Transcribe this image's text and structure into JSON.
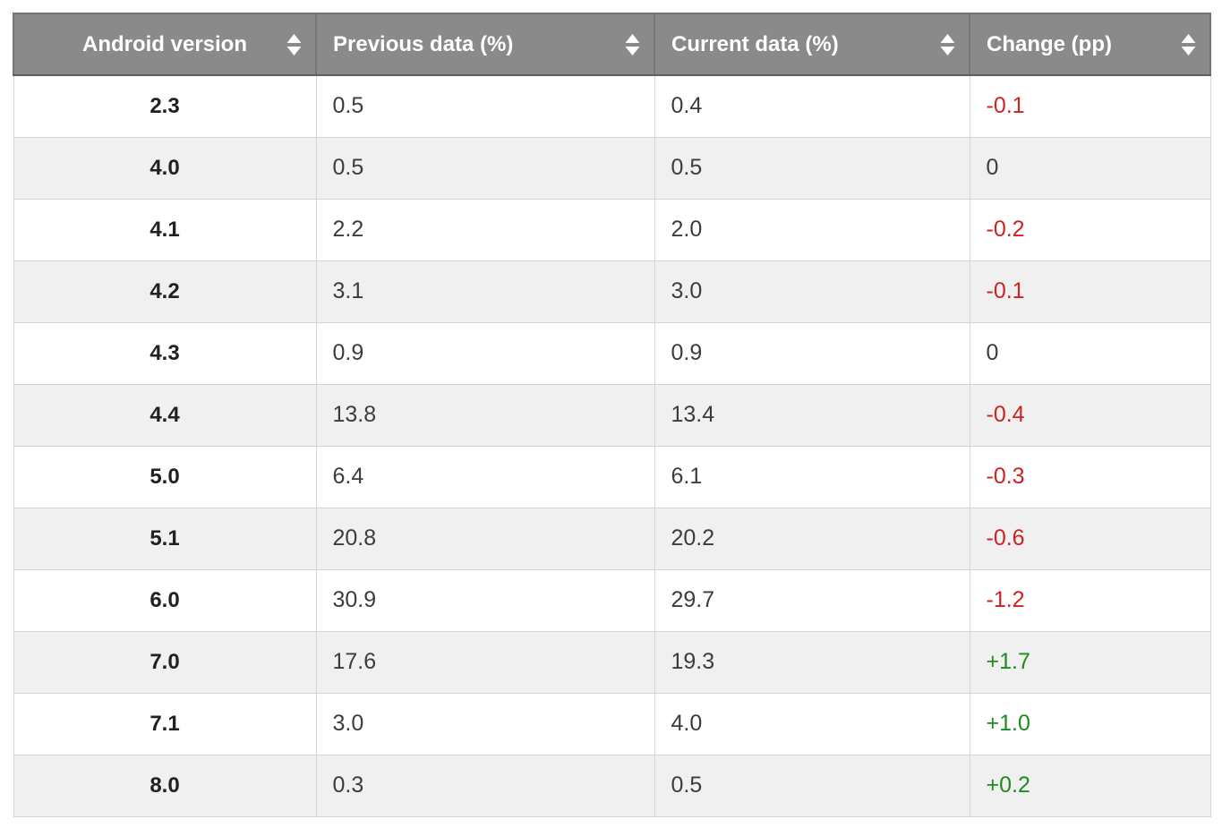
{
  "chart_data": {
    "type": "table",
    "columns": [
      "Android version",
      "Previous data (%)",
      "Current data (%)",
      "Change (pp)"
    ],
    "rows": [
      {
        "version": "2.3",
        "previous": "0.5",
        "current": "0.4",
        "change": "-0.1",
        "direction": "down"
      },
      {
        "version": "4.0",
        "previous": "0.5",
        "current": "0.5",
        "change": "0",
        "direction": "none"
      },
      {
        "version": "4.1",
        "previous": "2.2",
        "current": "2.0",
        "change": "-0.2",
        "direction": "down"
      },
      {
        "version": "4.2",
        "previous": "3.1",
        "current": "3.0",
        "change": "-0.1",
        "direction": "down"
      },
      {
        "version": "4.3",
        "previous": "0.9",
        "current": "0.9",
        "change": "0",
        "direction": "none"
      },
      {
        "version": "4.4",
        "previous": "13.8",
        "current": "13.4",
        "change": "-0.4",
        "direction": "down"
      },
      {
        "version": "5.0",
        "previous": "6.4",
        "current": "6.1",
        "change": "-0.3",
        "direction": "down"
      },
      {
        "version": "5.1",
        "previous": "20.8",
        "current": "20.2",
        "change": "-0.6",
        "direction": "down"
      },
      {
        "version": "6.0",
        "previous": "30.9",
        "current": "29.7",
        "change": "-1.2",
        "direction": "down"
      },
      {
        "version": "7.0",
        "previous": "17.6",
        "current": "19.3",
        "change": "+1.7",
        "direction": "up"
      },
      {
        "version": "7.1",
        "previous": "3.0",
        "current": "4.0",
        "change": "+1.0",
        "direction": "up"
      },
      {
        "version": "8.0",
        "previous": "0.3",
        "current": "0.5",
        "change": "+0.2",
        "direction": "up"
      }
    ]
  },
  "colors": {
    "header_bg": "#8a8a8a",
    "header_text": "#ffffff",
    "row_bg": "#ffffff",
    "row_alt_bg": "#f0f0f0",
    "border": "#d4d4d4",
    "negative": "#cc2222",
    "positive": "#1e8c1e",
    "text": "#3c3c3c",
    "version_text": "#212121"
  },
  "icons": {
    "sort": "sort-arrows-icon"
  }
}
